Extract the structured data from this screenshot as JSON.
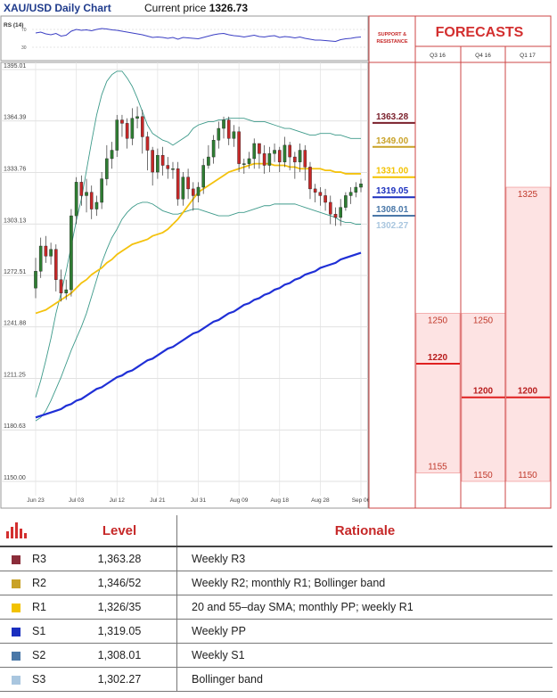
{
  "header": {
    "title": "XAU/USD Daily Chart",
    "price_label": "Current price",
    "price_value": "1326.73"
  },
  "chart_data": {
    "type": "candlestick",
    "title": "XAU/USD Daily Chart",
    "current_price": 1326.73,
    "ylim": [
      1150.0,
      1395.01
    ],
    "y_ticks": [
      1395.01,
      1364.39,
      1333.76,
      1303.13,
      1272.51,
      1241.88,
      1211.25,
      1180.63,
      1150.0
    ],
    "x_tick_labels": [
      "Jun 23",
      "Jul 03",
      "Jul 12",
      "Jul 21",
      "Jul 31",
      "Aug 09",
      "Aug 18",
      "Aug 28",
      "Sep 06"
    ],
    "x_tick_index": [
      0,
      8,
      16,
      24,
      32,
      40,
      48,
      56,
      64
    ],
    "candles_ohlc": [
      [
        1265,
        1275,
        1259,
        1283
      ],
      [
        1275,
        1290,
        1271,
        1295
      ],
      [
        1290,
        1284,
        1280,
        1296
      ],
      [
        1284,
        1288,
        1279,
        1292
      ],
      [
        1288,
        1270,
        1263,
        1291
      ],
      [
        1270,
        1262,
        1257,
        1276
      ],
      [
        1262,
        1264,
        1258,
        1270
      ],
      [
        1264,
        1308,
        1260,
        1312
      ],
      [
        1308,
        1328,
        1303,
        1331
      ],
      [
        1328,
        1320,
        1314,
        1332
      ],
      [
        1320,
        1322,
        1310,
        1330
      ],
      [
        1322,
        1312,
        1306,
        1326
      ],
      [
        1312,
        1316,
        1308,
        1320
      ],
      [
        1316,
        1330,
        1312,
        1334
      ],
      [
        1330,
        1342,
        1326,
        1350
      ],
      [
        1342,
        1347,
        1336,
        1352
      ],
      [
        1347,
        1365,
        1343,
        1368
      ],
      [
        1365,
        1363,
        1355,
        1368
      ],
      [
        1363,
        1354,
        1348,
        1366
      ],
      [
        1354,
        1366,
        1350,
        1372
      ],
      [
        1366,
        1367,
        1360,
        1373
      ],
      [
        1367,
        1355,
        1345,
        1371
      ],
      [
        1355,
        1347,
        1335,
        1358
      ],
      [
        1347,
        1334,
        1326,
        1349
      ],
      [
        1334,
        1344,
        1330,
        1348
      ],
      [
        1344,
        1338,
        1332,
        1349
      ],
      [
        1338,
        1336,
        1330,
        1343
      ],
      [
        1336,
        1336,
        1330,
        1340
      ],
      [
        1336,
        1318,
        1314,
        1340
      ],
      [
        1318,
        1331,
        1314,
        1334
      ],
      [
        1331,
        1324,
        1318,
        1336
      ],
      [
        1324,
        1320,
        1311,
        1328
      ],
      [
        1320,
        1325,
        1316,
        1328
      ],
      [
        1325,
        1338,
        1321,
        1342
      ],
      [
        1338,
        1343,
        1336,
        1350
      ],
      [
        1343,
        1353,
        1339,
        1356
      ],
      [
        1353,
        1360,
        1348,
        1364
      ],
      [
        1360,
        1365,
        1354,
        1367
      ],
      [
        1365,
        1354,
        1350,
        1367
      ],
      [
        1354,
        1358,
        1349,
        1362
      ],
      [
        1358,
        1339,
        1334,
        1361
      ],
      [
        1339,
        1339,
        1333,
        1342
      ],
      [
        1339,
        1342,
        1336,
        1346
      ],
      [
        1342,
        1351,
        1336,
        1354
      ],
      [
        1351,
        1345,
        1336,
        1351
      ],
      [
        1345,
        1338,
        1333,
        1350
      ],
      [
        1338,
        1345,
        1334,
        1349
      ],
      [
        1345,
        1347,
        1340,
        1351
      ],
      [
        1347,
        1340,
        1334,
        1349
      ],
      [
        1340,
        1350,
        1337,
        1355
      ],
      [
        1350,
        1343,
        1335,
        1352
      ],
      [
        1343,
        1340,
        1330,
        1346
      ],
      [
        1340,
        1347,
        1334,
        1351
      ],
      [
        1347,
        1337,
        1329,
        1350
      ],
      [
        1337,
        1324,
        1318,
        1340
      ],
      [
        1324,
        1322,
        1316,
        1327
      ],
      [
        1322,
        1320,
        1314,
        1325
      ],
      [
        1320,
        1316,
        1311,
        1324
      ],
      [
        1316,
        1309,
        1303,
        1320
      ],
      [
        1309,
        1307,
        1302,
        1313
      ],
      [
        1307,
        1313,
        1302,
        1318
      ],
      [
        1313,
        1320,
        1311,
        1322
      ],
      [
        1320,
        1322,
        1315,
        1325
      ],
      [
        1322,
        1325,
        1319,
        1328
      ],
      [
        1325,
        1327,
        1322,
        1330
      ]
    ],
    "sma_20": [
      1250,
      1251,
      1252,
      1254,
      1256,
      1258,
      1260,
      1262,
      1265,
      1268,
      1270,
      1273,
      1275,
      1277,
      1280,
      1282,
      1285,
      1287,
      1289,
      1291,
      1292,
      1293,
      1294,
      1296,
      1297,
      1298,
      1300,
      1303,
      1306,
      1310,
      1314,
      1318,
      1322,
      1324,
      1326,
      1328,
      1330,
      1332,
      1334,
      1335,
      1336,
      1337,
      1338,
      1339,
      1339,
      1339,
      1339,
      1338,
      1338,
      1338,
      1337,
      1337,
      1336,
      1336,
      1336,
      1336,
      1336,
      1335,
      1335,
      1334,
      1334,
      1333,
      1333,
      1333,
      1333
    ],
    "sma_55": [
      1188,
      1189,
      1190,
      1191,
      1192,
      1193,
      1195,
      1196,
      1198,
      1199,
      1201,
      1203,
      1205,
      1206,
      1208,
      1210,
      1212,
      1213,
      1215,
      1216,
      1218,
      1220,
      1222,
      1223,
      1225,
      1227,
      1229,
      1230,
      1232,
      1234,
      1236,
      1238,
      1239,
      1241,
      1243,
      1245,
      1246,
      1248,
      1250,
      1251,
      1253,
      1255,
      1256,
      1258,
      1259,
      1261,
      1262,
      1264,
      1265,
      1267,
      1268,
      1270,
      1271,
      1273,
      1274,
      1275,
      1277,
      1278,
      1279,
      1280,
      1282,
      1283,
      1284,
      1285,
      1286
    ],
    "bollinger_upper": [
      1200,
      1210,
      1222,
      1235,
      1250,
      1262,
      1275,
      1290,
      1305,
      1318,
      1335,
      1352,
      1368,
      1380,
      1388,
      1392,
      1394,
      1394,
      1390,
      1385,
      1378,
      1370,
      1362,
      1357,
      1355,
      1353,
      1352,
      1350,
      1352,
      1354,
      1356,
      1360,
      1362,
      1363,
      1364,
      1364,
      1365,
      1365,
      1366,
      1366,
      1366,
      1366,
      1365,
      1364,
      1364,
      1364,
      1363,
      1362,
      1361,
      1360,
      1360,
      1359,
      1358,
      1357,
      1356,
      1356,
      1357,
      1357,
      1357,
      1356,
      1356,
      1355,
      1354,
      1354,
      1354
    ],
    "bollinger_lower": [
      1186,
      1188,
      1192,
      1198,
      1205,
      1212,
      1220,
      1228,
      1235,
      1242,
      1250,
      1260,
      1270,
      1280,
      1288,
      1295,
      1300,
      1306,
      1310,
      1313,
      1315,
      1316,
      1316,
      1315,
      1313,
      1311,
      1310,
      1309,
      1309,
      1310,
      1311,
      1312,
      1312,
      1311,
      1310,
      1309,
      1308,
      1308,
      1308,
      1309,
      1310,
      1310,
      1311,
      1312,
      1313,
      1314,
      1314,
      1315,
      1315,
      1315,
      1315,
      1315,
      1314,
      1313,
      1312,
      1311,
      1310,
      1309,
      1308,
      1307,
      1305,
      1304,
      1304,
      1303,
      1303
    ],
    "rsi_label": "RS (14)",
    "rsi_scale_labels": [
      "70",
      "30"
    ],
    "rsi_values": [
      62,
      64,
      60,
      58,
      61,
      55,
      57,
      66,
      70,
      68,
      69,
      67,
      70,
      72,
      71,
      69,
      68,
      66,
      64,
      62,
      60,
      58,
      55,
      52,
      53,
      52,
      50,
      52,
      48,
      52,
      51,
      50,
      49,
      52,
      55,
      58,
      60,
      61,
      58,
      56,
      55,
      53,
      55,
      57,
      54,
      53,
      55,
      56,
      52,
      54,
      53,
      51,
      53,
      50,
      48,
      46,
      46,
      45,
      44,
      43,
      47,
      49,
      50,
      52,
      53
    ],
    "support_resistance": [
      {
        "value": 1363.28,
        "label": "1363.28",
        "color": "#7a1f2b"
      },
      {
        "value": 1349.0,
        "label": "1349.00",
        "color": "#c9a227"
      },
      {
        "value": 1331.0,
        "label": "1331.00",
        "color": "#f2c200"
      },
      {
        "value": 1319.05,
        "label": "1319.05",
        "color": "#1a2fbf"
      },
      {
        "value": 1308.01,
        "label": "1308.01",
        "color": "#4a78a8"
      },
      {
        "value": 1302.27,
        "label": "1302.27",
        "color": "#a9c6df"
      }
    ],
    "forecasts": {
      "header_support": "SUPPORT & RESISTANCE",
      "title": "FORECASTS",
      "columns": [
        {
          "label": "Q3 16",
          "high": 1250,
          "median": 1220,
          "low": 1155
        },
        {
          "label": "Q4 16",
          "high": 1250,
          "median": 1200,
          "low": 1150
        },
        {
          "label": "Q1 17",
          "high": 1325,
          "median": 1200,
          "low": 1150
        }
      ]
    },
    "colors": {
      "bull": "#2e7d32",
      "bear": "#c62828",
      "sma20": "#f4c20d",
      "sma55": "#1f2fd6",
      "bollinger": "#3d9a8a",
      "forecast_fill": "#fde3e3",
      "forecast_line": "#e02020"
    }
  },
  "table": {
    "headers": {
      "level": "Level",
      "rationale": "Rationale"
    },
    "rows": [
      {
        "name": "R3",
        "level": "1,363.28",
        "rationale": "Weekly R3",
        "color": "#8b2d3a"
      },
      {
        "name": "R2",
        "level": "1,346/52",
        "rationale": "Weekly R2; monthly R1; Bollinger band",
        "color": "#c9a227"
      },
      {
        "name": "R1",
        "level": "1,326/35",
        "rationale": "20 and 55–day SMA; monthly PP; weekly R1",
        "color": "#f2c200"
      },
      {
        "name": "S1",
        "level": "1,319.05",
        "rationale": "Weekly PP",
        "color": "#1a2fbf"
      },
      {
        "name": "S2",
        "level": "1,308.01",
        "rationale": "Weekly S1",
        "color": "#4a78a8"
      },
      {
        "name": "S3",
        "level": "1,302.27",
        "rationale": "Bollinger band",
        "color": "#a9c6df"
      }
    ]
  }
}
